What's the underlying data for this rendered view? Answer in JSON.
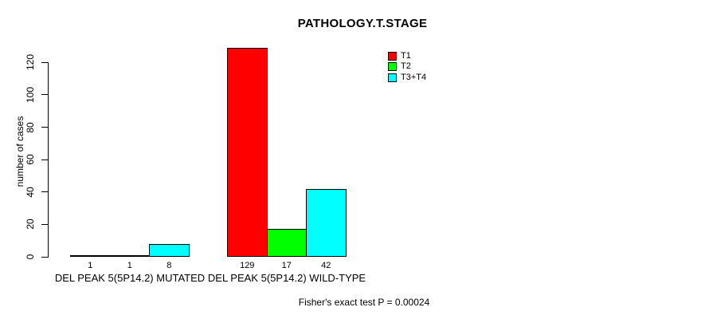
{
  "chart_data": {
    "type": "bar",
    "title": "PATHOLOGY.T.STAGE",
    "xlabel": "",
    "ylabel": "number of cases",
    "ylim": [
      0,
      129
    ],
    "yticks": [
      0,
      20,
      40,
      60,
      80,
      100,
      120
    ],
    "grid": false,
    "legend_position": "top-right",
    "categories": [
      "DEL PEAK  5(5P14.2) MUTATED",
      "DEL PEAK  5(5P14.2) WILD-TYPE"
    ],
    "series": [
      {
        "name": "T1",
        "color": "#ff0000",
        "values": [
          1,
          129
        ]
      },
      {
        "name": "T2",
        "color": "#00ff00",
        "values": [
          1,
          17
        ]
      },
      {
        "name": "T3+T4",
        "color": "#00ffff",
        "values": [
          8,
          42
        ]
      }
    ],
    "bar_value_labels": [
      [
        1,
        1,
        8
      ],
      [
        129,
        17,
        42
      ]
    ]
  },
  "footer": {
    "text": "Fisher's exact test P = 0.00024"
  }
}
